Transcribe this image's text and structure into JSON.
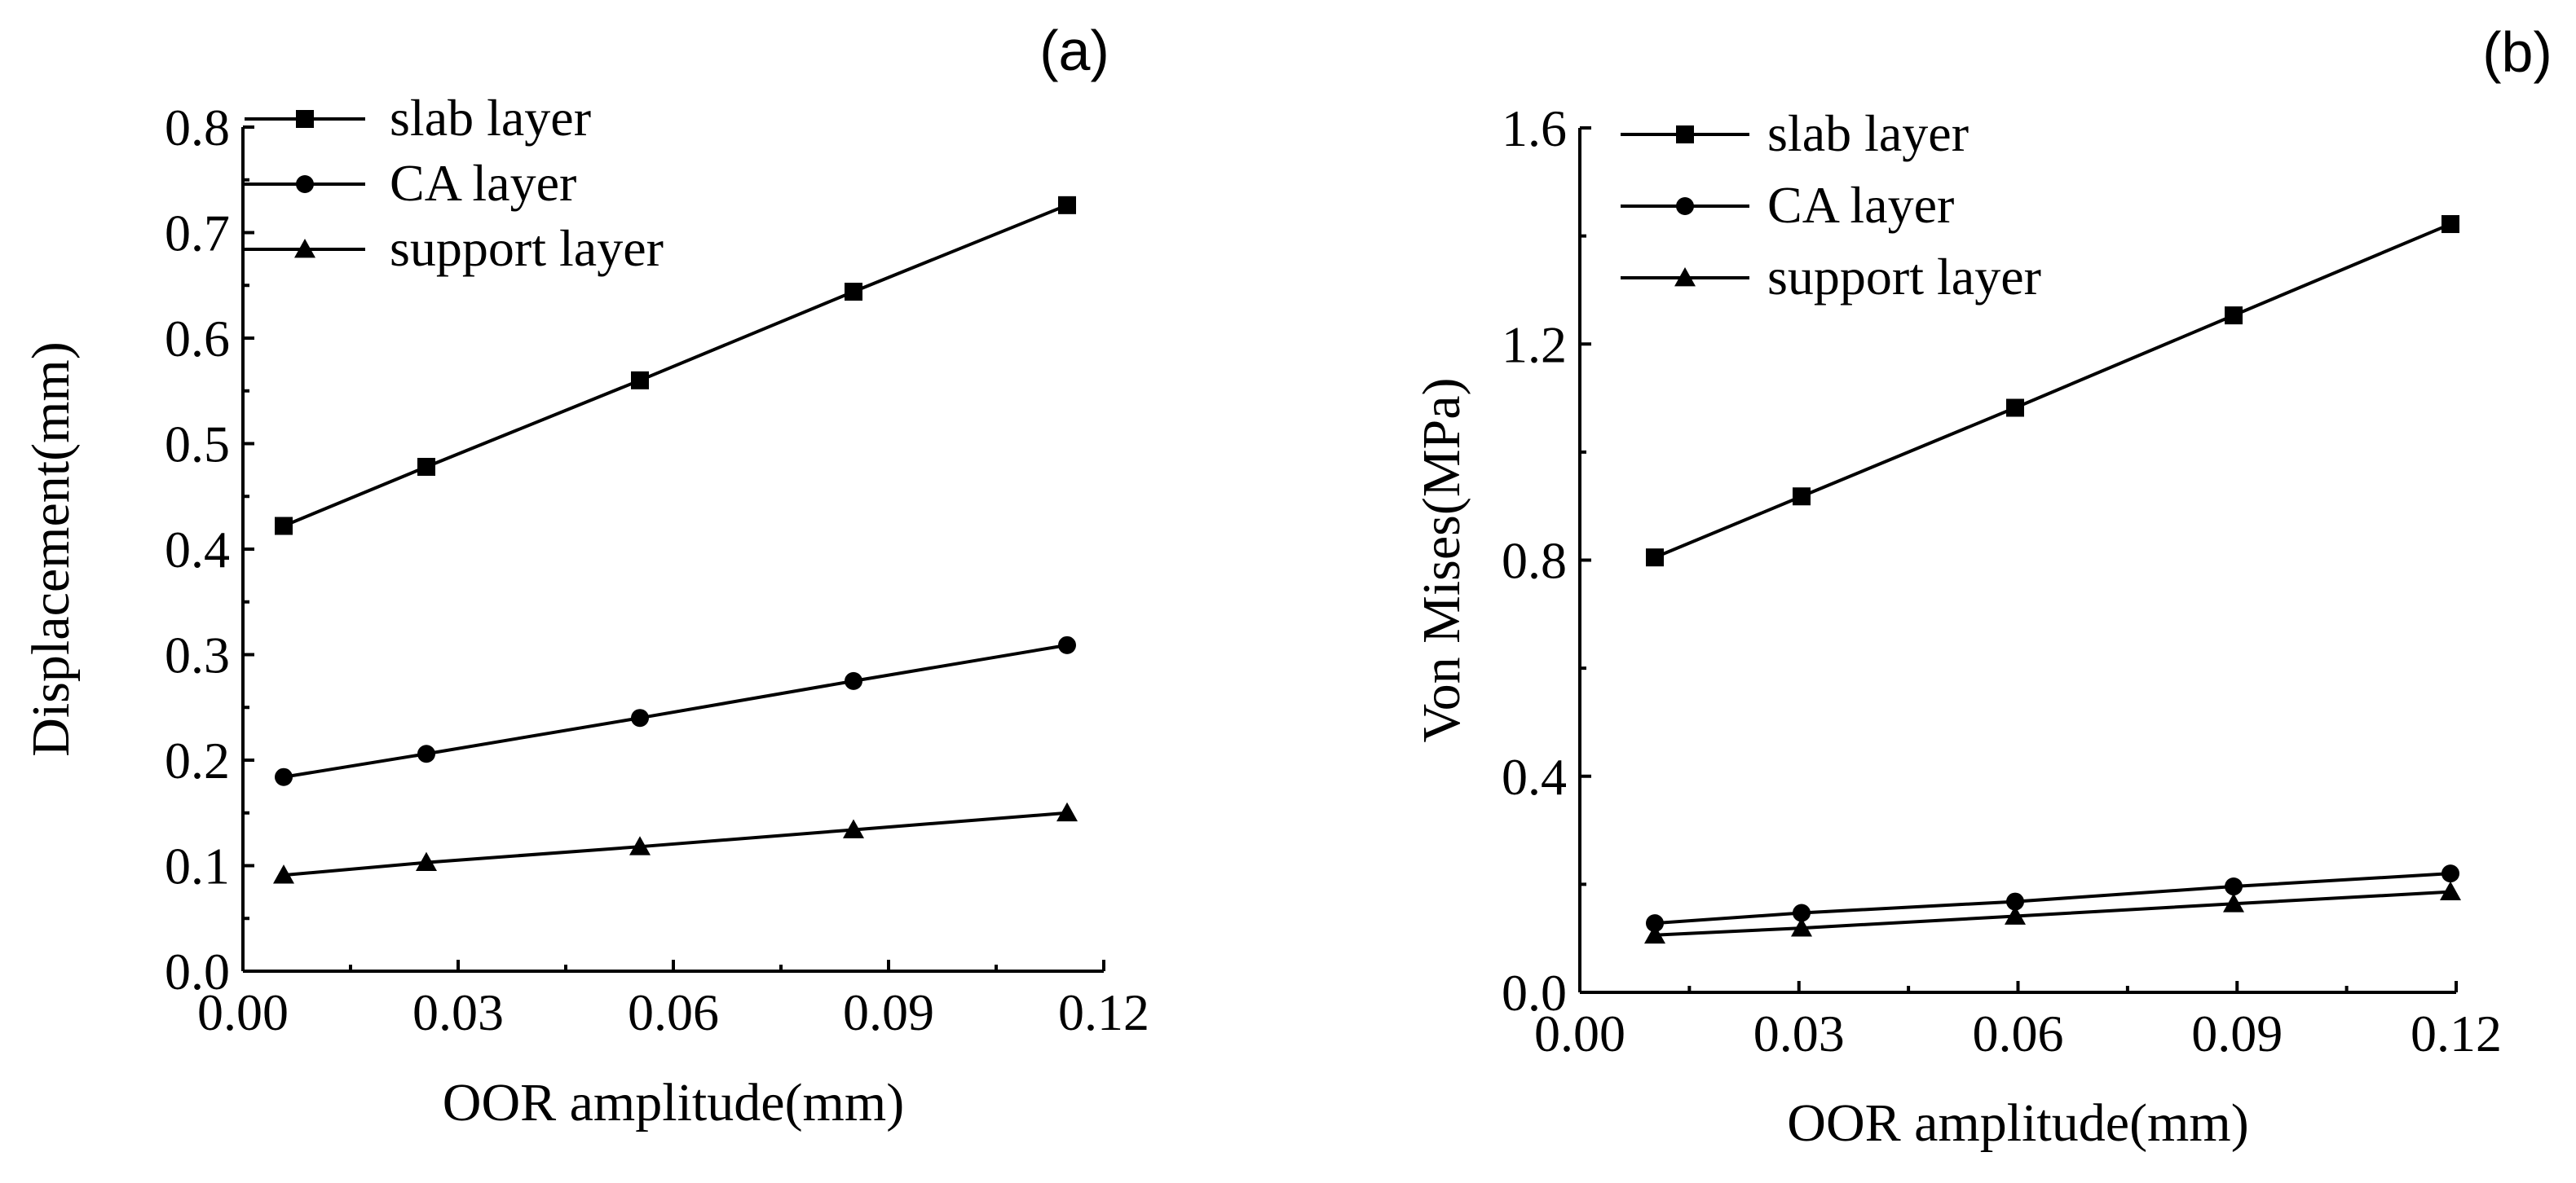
{
  "figure": {
    "colors": {
      "ink": "#000000",
      "background": "#ffffff"
    }
  },
  "chart_data": [
    {
      "panel": "(a)",
      "type": "line",
      "xlabel": "OOR amplitude(mm)",
      "ylabel": "Displacement(mm)",
      "xlim": [
        0.0,
        0.12
      ],
      "ylim": [
        0.0,
        0.8
      ],
      "xticks": [
        0.0,
        0.03,
        0.06,
        0.09,
        0.12
      ],
      "xtick_labels": [
        "0.00",
        "0.03",
        "0.06",
        "0.09",
        "0.12"
      ],
      "yticks": [
        0.0,
        0.1,
        0.2,
        0.3,
        0.4,
        0.5,
        0.6,
        0.7,
        0.8
      ],
      "ytick_labels": [
        "0.0",
        "0.1",
        "0.2",
        "0.3",
        "0.4",
        "0.5",
        "0.6",
        "0.7",
        "0.8"
      ],
      "legend_position": "top-left",
      "x": [
        0.01,
        0.03,
        0.06,
        0.09,
        0.12
      ],
      "series": [
        {
          "name": "slab layer",
          "marker": "square",
          "values": [
            0.422,
            0.478,
            0.56,
            0.644,
            0.726
          ]
        },
        {
          "name": "CA layer",
          "marker": "circle",
          "values": [
            0.184,
            0.206,
            0.24,
            0.275,
            0.309
          ]
        },
        {
          "name": "support layer",
          "marker": "triangle",
          "values": [
            0.091,
            0.103,
            0.118,
            0.134,
            0.15
          ]
        }
      ]
    },
    {
      "panel": "(b)",
      "type": "line",
      "xlabel": "OOR amplitude(mm)",
      "ylabel": "Von Mises(MPa)",
      "xlim": [
        0.0,
        0.12
      ],
      "ylim": [
        0.0,
        1.6
      ],
      "xticks": [
        0.0,
        0.03,
        0.06,
        0.09,
        0.12
      ],
      "xtick_labels": [
        "0.00",
        "0.03",
        "0.06",
        "0.09",
        "0.12"
      ],
      "yticks": [
        0.0,
        0.4,
        0.8,
        1.2,
        1.6
      ],
      "ytick_labels": [
        "0.0",
        "0.4",
        "0.8",
        "1.2",
        "1.6"
      ],
      "legend_position": "top-left",
      "x": [
        0.01,
        0.03,
        0.06,
        0.09,
        0.12
      ],
      "series": [
        {
          "name": "slab layer",
          "marker": "square",
          "values": [
            0.805,
            0.918,
            1.082,
            1.253,
            1.422
          ]
        },
        {
          "name": "CA layer",
          "marker": "circle",
          "values": [
            0.128,
            0.147,
            0.168,
            0.196,
            0.22
          ]
        },
        {
          "name": "support layer",
          "marker": "triangle",
          "values": [
            0.106,
            0.119,
            0.141,
            0.164,
            0.186
          ]
        }
      ]
    }
  ]
}
